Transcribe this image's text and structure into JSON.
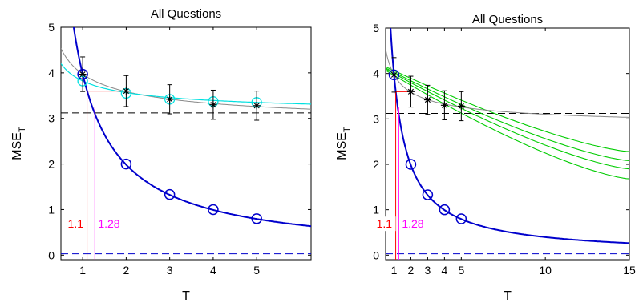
{
  "chart_data": [
    {
      "type": "line",
      "title": "All Questions",
      "xlabel": "T",
      "ylabel": "MSE",
      "ylabel_sub": "T",
      "xlim": [
        0.5,
        6.25
      ],
      "ylim": [
        -0.1,
        5
      ],
      "x_ticks": [
        1,
        2,
        3,
        4,
        5
      ],
      "y_ticks": [
        0,
        1,
        2,
        3,
        4,
        5
      ],
      "grid": false,
      "annotations": [
        {
          "text": "1.1",
          "x": 1.1,
          "color": "#ff0000"
        },
        {
          "text": "1.28",
          "x": 1.28,
          "color": "#ff00ff"
        }
      ],
      "series": [
        {
          "role": "blue-curve",
          "color": "#0000cc",
          "x": [
            1,
            2,
            3,
            4,
            5
          ],
          "y": [
            3.97,
            1.99,
            1.33,
            1.0,
            0.8
          ]
        },
        {
          "role": "blue-circles",
          "color": "#0000cc",
          "x": [
            1,
            2,
            3,
            4,
            5
          ],
          "y": [
            3.97,
            2.0,
            1.33,
            1.0,
            0.8
          ]
        },
        {
          "role": "cyan-curve",
          "color": "#00e0e0",
          "x": [
            1,
            2,
            3,
            4,
            5
          ],
          "y": [
            3.82,
            3.58,
            3.44,
            3.39,
            3.36
          ]
        },
        {
          "role": "cyan-circles",
          "color": "#00e0e0",
          "x": [
            1,
            2,
            3,
            4,
            5
          ],
          "y": [
            3.82,
            3.55,
            3.42,
            3.37,
            3.35
          ]
        },
        {
          "role": "black-stars",
          "color": "#000000",
          "x": [
            1,
            2,
            3,
            4,
            5
          ],
          "y": [
            3.97,
            3.6,
            3.42,
            3.3,
            3.28
          ],
          "err": [
            0.38,
            0.34,
            0.32,
            0.32,
            0.32
          ]
        },
        {
          "role": "gray-curve",
          "color": "#888888"
        },
        {
          "role": "dashed-black",
          "color": "#000000",
          "y": 3.12
        },
        {
          "role": "dashed-cyan",
          "color": "#00e0e0",
          "y": 3.25
        },
        {
          "role": "dashed-blue",
          "color": "#0000cc",
          "y": 0.03
        }
      ]
    },
    {
      "type": "line",
      "title": "All Questions",
      "xlabel": "T",
      "ylabel": "MSE",
      "ylabel_sub": "T",
      "xlim": [
        0.5,
        15
      ],
      "ylim": [
        -0.1,
        5
      ],
      "x_ticks": [
        1,
        2,
        3,
        4,
        5,
        10,
        15
      ],
      "y_ticks": [
        0,
        1,
        2,
        3,
        4,
        5
      ],
      "grid": false,
      "annotations": [
        {
          "text": "1.1",
          "x": 1.1,
          "color": "#ff0000"
        },
        {
          "text": "1.28",
          "x": 1.28,
          "color": "#ff00ff"
        }
      ],
      "series": [
        {
          "role": "blue-curve",
          "color": "#0000cc",
          "x": [
            1,
            2,
            3,
            4,
            5
          ],
          "y": [
            3.97,
            1.99,
            1.33,
            1.0,
            0.8
          ]
        },
        {
          "role": "blue-circles",
          "color": "#0000cc",
          "x": [
            1,
            2,
            3,
            4,
            5
          ],
          "y": [
            3.97,
            2.0,
            1.33,
            1.0,
            0.8
          ]
        },
        {
          "role": "green-curve-1",
          "color": "#00cc00",
          "x": [
            0.5,
            15
          ],
          "y": [
            4.15,
            2.28
          ]
        },
        {
          "role": "green-curve-2",
          "color": "#00cc00",
          "x": [
            0.5,
            15
          ],
          "y": [
            4.12,
            2.08
          ]
        },
        {
          "role": "green-curve-3",
          "color": "#00cc00",
          "x": [
            0.5,
            15
          ],
          "y": [
            4.1,
            1.9
          ]
        },
        {
          "role": "green-curve-4",
          "color": "#00cc00",
          "x": [
            0.5,
            15
          ],
          "y": [
            4.07,
            1.68
          ]
        },
        {
          "role": "black-stars",
          "color": "#000000",
          "x": [
            1,
            2,
            3,
            4,
            5
          ],
          "y": [
            3.97,
            3.6,
            3.42,
            3.3,
            3.28
          ],
          "err": [
            0.38,
            0.34,
            0.32,
            0.32,
            0.32
          ]
        },
        {
          "role": "gray-curve",
          "color": "#888888"
        },
        {
          "role": "dashed-black",
          "color": "#000000",
          "y": 3.12
        },
        {
          "role": "dashed-blue",
          "color": "#0000cc",
          "y": 0.03
        }
      ]
    }
  ]
}
